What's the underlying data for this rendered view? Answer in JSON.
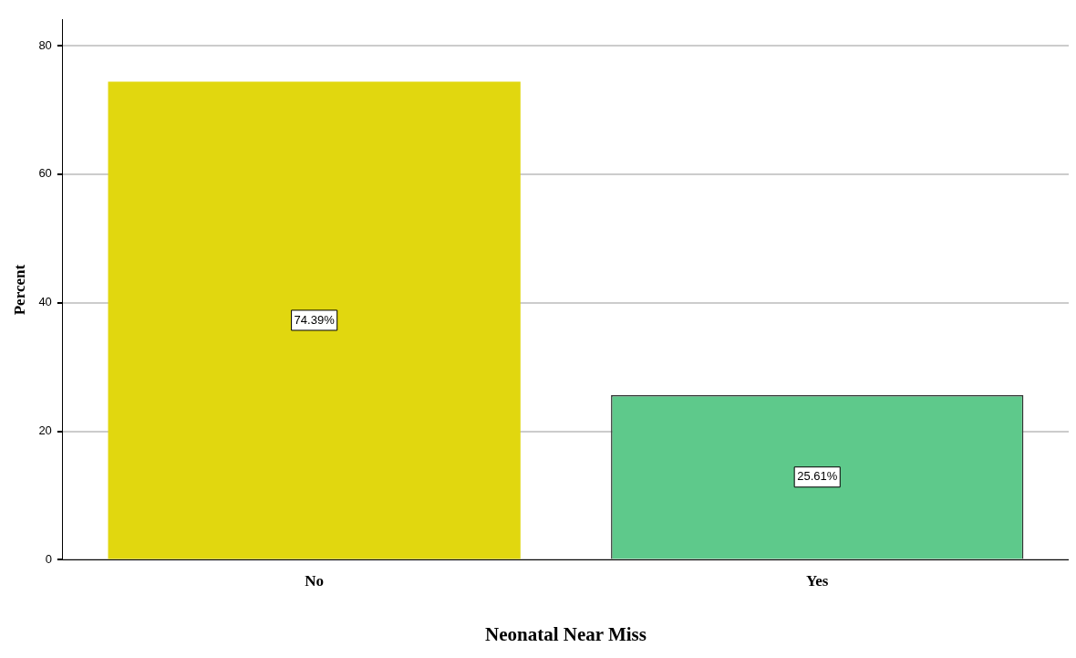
{
  "chart_data": {
    "type": "bar",
    "xlabel": "Neonatal Near Miss",
    "ylabel": "Percent",
    "categories": [
      "No",
      "Yes"
    ],
    "values": [
      74.39,
      25.61
    ],
    "colors": [
      "#e1d70f",
      "#5ec98b"
    ],
    "value_labels": [
      "74.39%",
      "25.61%"
    ],
    "ylim": [
      0,
      84
    ],
    "yticks": [
      0,
      20,
      40,
      60,
      80
    ],
    "grid": "y",
    "legend": false
  }
}
